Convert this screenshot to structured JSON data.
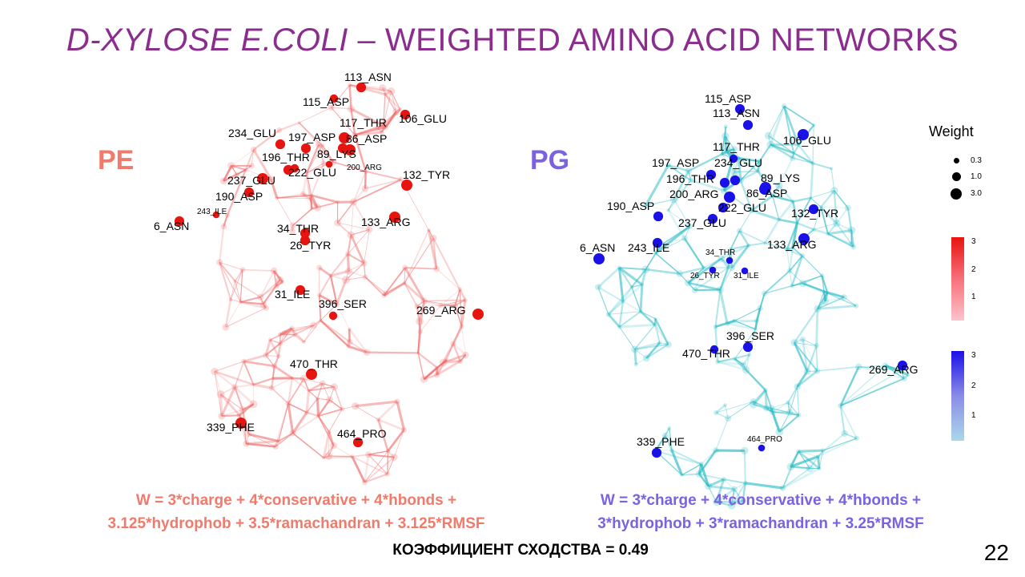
{
  "title": {
    "italic": "D-XYLOSE E.COLI",
    "dash": " – ",
    "rest": "WEIGHTED AMINO ACID NETWORKS"
  },
  "left": {
    "label": "PE",
    "color": "#f07b6c",
    "formula_line1": "W = 3*charge + 4*conservative + 4*hbonds +",
    "formula_line2": "3.125*hydrophob + 3.5*ramachandran + 3.125*RMSF"
  },
  "right": {
    "label": "PG",
    "color": "#7a62e0",
    "formula_line1": "W = 3*charge + 4*conservative + 4*hbonds +",
    "formula_line2": "3*hydrophob + 3*ramachandran + 3.25*RMSF"
  },
  "similarity": "КОЭФФИЦИЕНТ СХОДСТВА = 0.49",
  "page_number": "22",
  "legend": {
    "title": "Weight",
    "sizes": [
      "0.3",
      "1.0",
      "3.0"
    ],
    "red_ticks": [
      "3",
      "2",
      "1"
    ],
    "blue_ticks": [
      "3",
      "2",
      "1"
    ]
  },
  "colors": {
    "title": "#8b2c8f",
    "pe_node": "#e8140f",
    "pg_node": "#1a10e8",
    "pe_edge": "#ef6a6a",
    "pg_edge": "#2bbcc4"
  },
  "pe_nodes": [
    {
      "name": "113_ASN",
      "weight": 2.0
    },
    {
      "name": "115_ASP",
      "weight": 1.5
    },
    {
      "name": "106_GLU",
      "weight": 2.0
    },
    {
      "name": "117_THR",
      "weight": 2.5
    },
    {
      "name": "86_ASP",
      "weight": 2.5
    },
    {
      "name": "234_GLU",
      "weight": 2.0
    },
    {
      "name": "197_ASP",
      "weight": 2.0
    },
    {
      "name": "89_LYS",
      "weight": 2.0
    },
    {
      "name": "196_THR",
      "weight": 1.5
    },
    {
      "name": "200_ARG",
      "weight": 1.0
    },
    {
      "name": "222_GLU",
      "weight": 2.0
    },
    {
      "name": "132_TYR",
      "weight": 2.5
    },
    {
      "name": "237_GLU",
      "weight": 2.5
    },
    {
      "name": "190_ASP",
      "weight": 2.0
    },
    {
      "name": "243_ILE",
      "weight": 1.0
    },
    {
      "name": "6_ASN",
      "weight": 2.0
    },
    {
      "name": "133_ARG",
      "weight": 2.5
    },
    {
      "name": "34_THR",
      "weight": 2.0
    },
    {
      "name": "26_TYR",
      "weight": 2.0
    },
    {
      "name": "31_ILE",
      "weight": 2.0
    },
    {
      "name": "396_SER",
      "weight": 1.5
    },
    {
      "name": "269_ARG",
      "weight": 2.5
    },
    {
      "name": "470_THR",
      "weight": 2.5
    },
    {
      "name": "339_PHE",
      "weight": 2.5
    },
    {
      "name": "464_PRO",
      "weight": 2.0
    }
  ],
  "pg_nodes": [
    {
      "name": "115_ASP",
      "weight": 2.0
    },
    {
      "name": "113_ASN",
      "weight": 2.0
    },
    {
      "name": "106_GLU",
      "weight": 2.5
    },
    {
      "name": "117_THR",
      "weight": 1.5
    },
    {
      "name": "197_ASP",
      "weight": 2.0
    },
    {
      "name": "234_GLU",
      "weight": 2.0
    },
    {
      "name": "196_THR",
      "weight": 2.0
    },
    {
      "name": "89_LYS",
      "weight": 2.5
    },
    {
      "name": "200_ARG",
      "weight": 2.5
    },
    {
      "name": "86_ASP",
      "weight": 2.5
    },
    {
      "name": "190_ASP",
      "weight": 2.0
    },
    {
      "name": "222_GLU",
      "weight": 2.0
    },
    {
      "name": "132_TYR",
      "weight": 2.0
    },
    {
      "name": "237_GLU",
      "weight": 2.0
    },
    {
      "name": "133_ARG",
      "weight": 2.5
    },
    {
      "name": "6_ASN",
      "weight": 2.5
    },
    {
      "name": "243_ILE",
      "weight": 2.0
    },
    {
      "name": "34_THR",
      "weight": 1.0
    },
    {
      "name": "26_TYR",
      "weight": 1.0
    },
    {
      "name": "31_ILE",
      "weight": 1.0
    },
    {
      "name": "396_SER",
      "weight": 2.0
    },
    {
      "name": "470_THR",
      "weight": 1.5
    },
    {
      "name": "269_ARG",
      "weight": 2.0
    },
    {
      "name": "339_PHE",
      "weight": 2.0
    },
    {
      "name": "464_PRO",
      "weight": 1.0
    }
  ]
}
